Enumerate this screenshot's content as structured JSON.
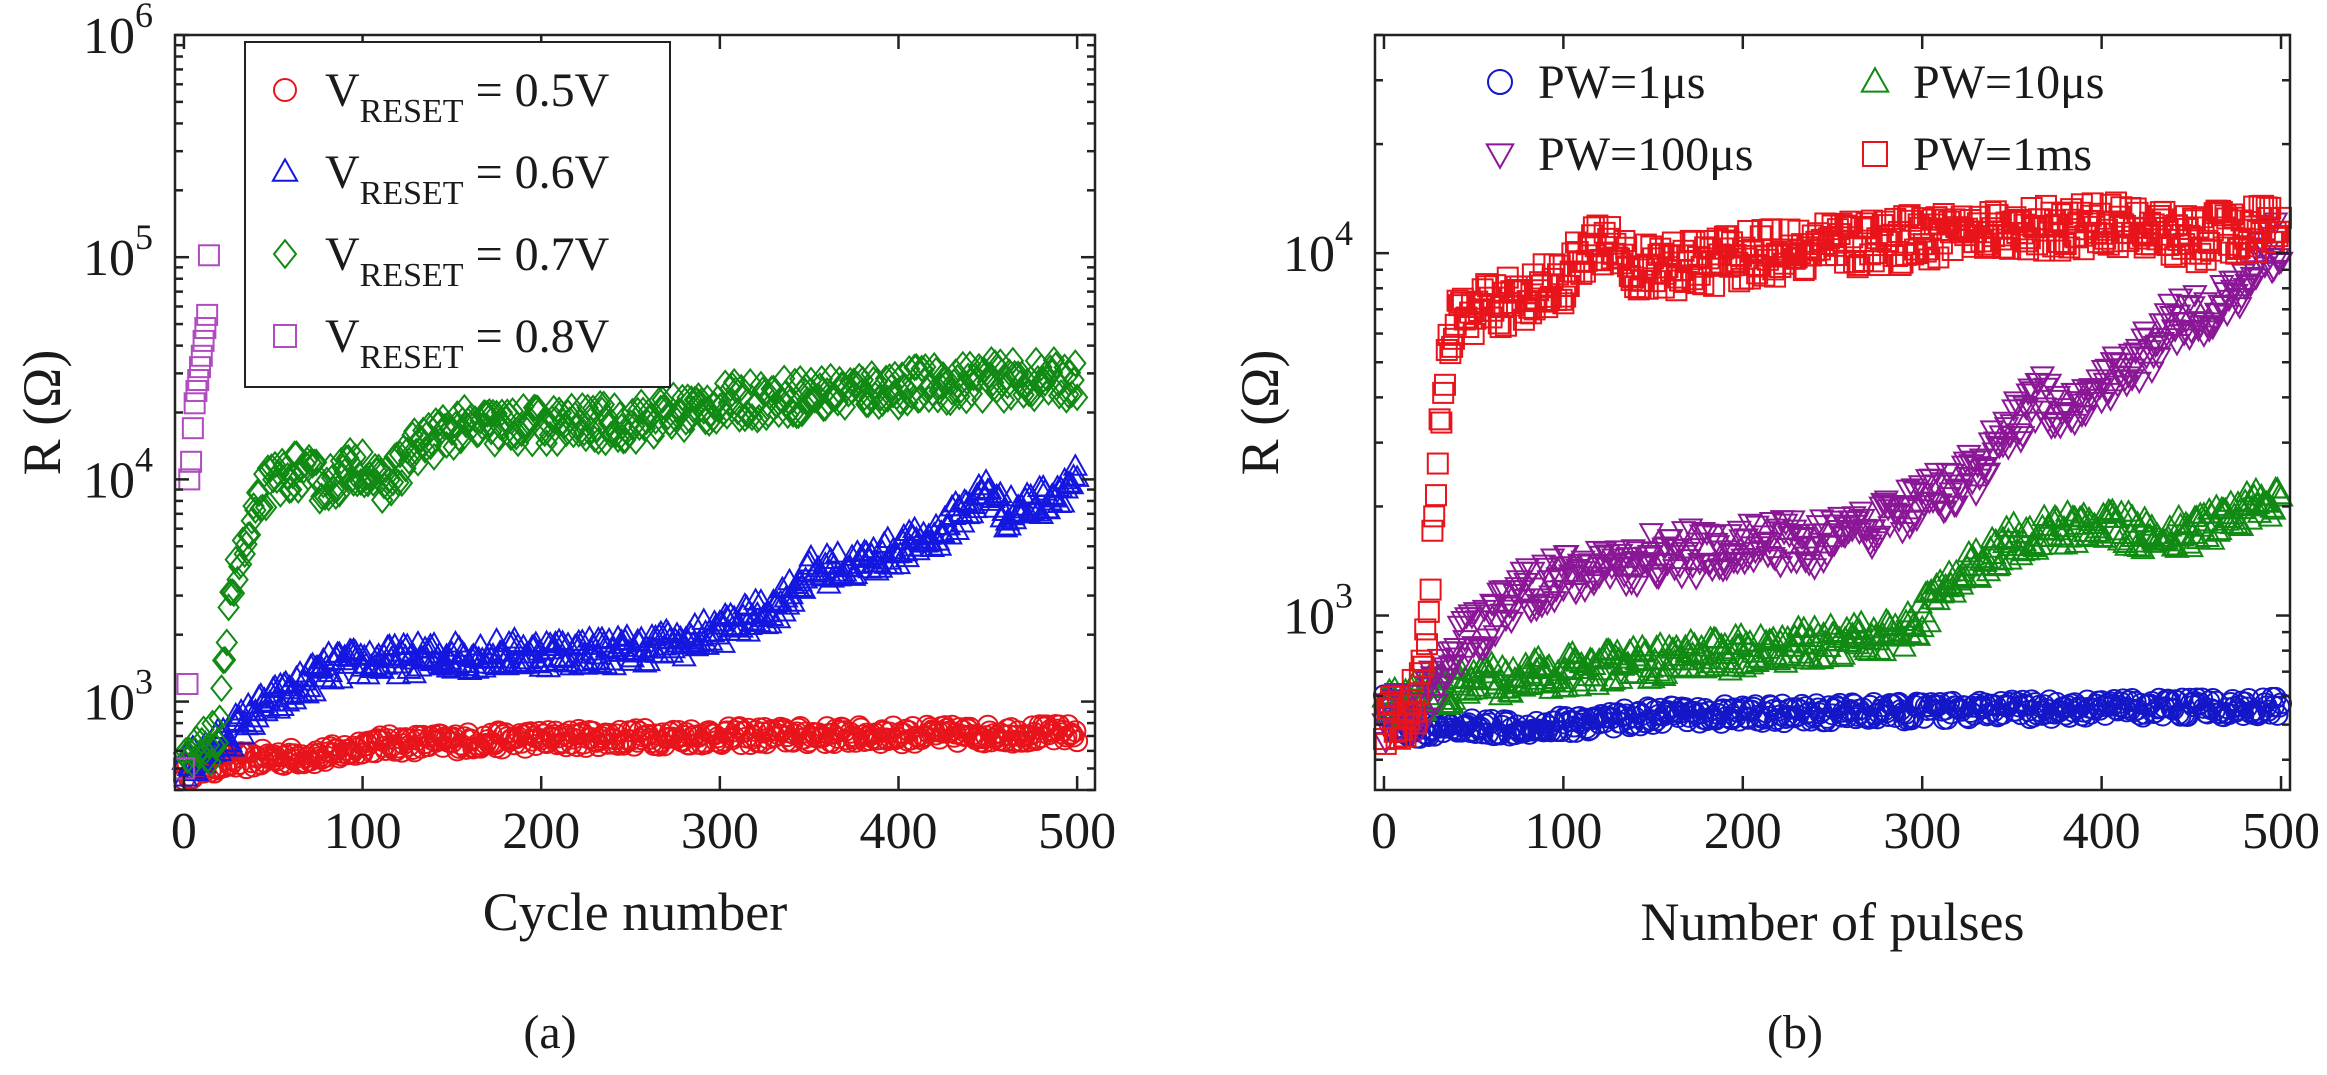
{
  "figure": {
    "panel_a_label": "(a)",
    "panel_b_label": "(b)"
  },
  "chart_data": [
    {
      "id": "a",
      "type": "scatter",
      "xlabel": "Cycle number",
      "ylabel": "R (Ω)",
      "xlim": [
        -5,
        510
      ],
      "ylim": [
        400,
        1000000
      ],
      "yscale": "log",
      "xticks": [
        0,
        100,
        200,
        300,
        400,
        500
      ],
      "yticks": [
        {
          "value": 1000,
          "base": "10",
          "exp": "3"
        },
        {
          "value": 10000,
          "base": "10",
          "exp": "4"
        },
        {
          "value": 100000,
          "base": "10",
          "exp": "5"
        },
        {
          "value": 1000000,
          "base": "10",
          "exp": "6"
        }
      ],
      "legend_position": "top-right",
      "series": [
        {
          "name": "V_RESET = 0.5V",
          "legend_main": "V",
          "legend_sub": "RESET",
          "legend_rest": " = 0.5V",
          "color": "#e8141b",
          "marker": "circle",
          "x_range": [
            0,
            500
          ],
          "points": [
            [
              0,
              480
            ],
            [
              20,
              530
            ],
            [
              50,
              560
            ],
            [
              80,
              575
            ],
            [
              95,
              610
            ],
            [
              100,
              640
            ],
            [
              150,
              660
            ],
            [
              200,
              680
            ],
            [
              250,
              690
            ],
            [
              300,
              700
            ],
            [
              350,
              705
            ],
            [
              400,
              710
            ],
            [
              450,
              715
            ],
            [
              500,
              720
            ]
          ],
          "jitter": 0.04
        },
        {
          "name": "V_RESET = 0.6V",
          "legend_main": "V",
          "legend_sub": "RESET",
          "legend_rest": " = 0.6V",
          "color": "#1417e0",
          "marker": "triangle-up",
          "x_range": [
            0,
            500
          ],
          "points": [
            [
              0,
              500
            ],
            [
              20,
              650
            ],
            [
              40,
              900
            ],
            [
              60,
              1100
            ],
            [
              80,
              1400
            ],
            [
              100,
              1500
            ],
            [
              150,
              1600
            ],
            [
              200,
              1650
            ],
            [
              250,
              1700
            ],
            [
              280,
              1850
            ],
            [
              300,
              2100
            ],
            [
              330,
              2600
            ],
            [
              350,
              3800
            ],
            [
              380,
              4200
            ],
            [
              420,
              5500
            ],
            [
              450,
              9000
            ],
            [
              460,
              7000
            ],
            [
              480,
              8000
            ],
            [
              500,
              10000
            ]
          ],
          "jitter": 0.07
        },
        {
          "name": "V_RESET = 0.7V",
          "legend_main": "V",
          "legend_sub": "RESET",
          "legend_rest": " = 0.7V",
          "color": "#118a14",
          "marker": "diamond",
          "x_range": [
            0,
            500
          ],
          "points": [
            [
              0,
              500
            ],
            [
              10,
              600
            ],
            [
              20,
              700
            ],
            [
              25,
              3000
            ],
            [
              35,
              5000
            ],
            [
              45,
              9000
            ],
            [
              60,
              11000
            ],
            [
              80,
              9500
            ],
            [
              100,
              12000
            ],
            [
              110,
              9000
            ],
            [
              130,
              14000
            ],
            [
              150,
              17000
            ],
            [
              200,
              17500
            ],
            [
              250,
              18000
            ],
            [
              300,
              22000
            ],
            [
              350,
              24000
            ],
            [
              400,
              26000
            ],
            [
              450,
              28000
            ],
            [
              500,
              28000
            ]
          ],
          "jitter": 0.09
        },
        {
          "name": "V_RESET = 0.8V",
          "legend_main": "V",
          "legend_sub": "RESET",
          "legend_rest": " = 0.8V",
          "color": "#b04bc0",
          "marker": "square",
          "x_range": [
            0,
            15
          ],
          "explicit": [
            [
              0,
              500
            ],
            [
              2,
              1200
            ],
            [
              3,
              10000
            ],
            [
              4,
              12000
            ],
            [
              5,
              17000
            ],
            [
              6,
              22000
            ],
            [
              7,
              25000
            ],
            [
              8,
              28000
            ],
            [
              9,
              32000
            ],
            [
              10,
              36000
            ],
            [
              11,
              42000
            ],
            [
              12,
              48000
            ],
            [
              13,
              55000
            ],
            [
              14,
              102000
            ]
          ]
        }
      ]
    },
    {
      "id": "b",
      "type": "scatter",
      "xlabel": "Number of pulses",
      "ylabel": "R (Ω)",
      "xlim": [
        -5,
        505
      ],
      "ylim": [
        330,
        40000
      ],
      "yscale": "log",
      "xticks": [
        0,
        100,
        200,
        300,
        400,
        500
      ],
      "yticks": [
        {
          "value": 1000,
          "base": "10",
          "exp": "3"
        },
        {
          "value": 10000,
          "base": "10",
          "exp": "4"
        }
      ],
      "legend_position": "top",
      "series": [
        {
          "name": "PW=1μs",
          "legend_main": "PW=1μs",
          "color": "#1417c8",
          "marker": "circle",
          "x_range": [
            0,
            500
          ],
          "points": [
            [
              0,
              600
            ],
            [
              5,
              500
            ],
            [
              20,
              480
            ],
            [
              50,
              490
            ],
            [
              100,
              500
            ],
            [
              130,
              520
            ],
            [
              150,
              530
            ],
            [
              200,
              535
            ],
            [
              300,
              545
            ],
            [
              400,
              555
            ],
            [
              500,
              560
            ]
          ],
          "jitter": 0.025
        },
        {
          "name": "PW=10μs",
          "legend_main": "PW=10μs",
          "color": "#118a14",
          "marker": "triangle-up",
          "x_range": [
            0,
            500
          ],
          "points": [
            [
              0,
              550
            ],
            [
              20,
              600
            ],
            [
              50,
              650
            ],
            [
              100,
              700
            ],
            [
              150,
              740
            ],
            [
              200,
              790
            ],
            [
              250,
              850
            ],
            [
              290,
              900
            ],
            [
              300,
              1000
            ],
            [
              320,
              1300
            ],
            [
              350,
              1600
            ],
            [
              380,
              1750
            ],
            [
              400,
              1800
            ],
            [
              430,
              1650
            ],
            [
              450,
              1700
            ],
            [
              480,
              1950
            ],
            [
              500,
              2100
            ]
          ],
          "jitter": 0.05
        },
        {
          "name": "PW=100μs",
          "legend_main": "PW=100μs",
          "color": "#8a1796",
          "marker": "triangle-down",
          "x_range": [
            0,
            500
          ],
          "points": [
            [
              0,
              520
            ],
            [
              20,
              560
            ],
            [
              30,
              650
            ],
            [
              45,
              850
            ],
            [
              60,
              950
            ],
            [
              80,
              1200
            ],
            [
              100,
              1300
            ],
            [
              150,
              1450
            ],
            [
              200,
              1550
            ],
            [
              250,
              1600
            ],
            [
              270,
              1700
            ],
            [
              300,
              2000
            ],
            [
              330,
              2500
            ],
            [
              350,
              3200
            ],
            [
              360,
              4000
            ],
            [
              380,
              3800
            ],
            [
              400,
              4500
            ],
            [
              420,
              5000
            ],
            [
              440,
              6500
            ],
            [
              460,
              7000
            ],
            [
              480,
              8000
            ],
            [
              490,
              10000
            ],
            [
              500,
              11000
            ]
          ],
          "jitter": 0.07
        },
        {
          "name": "PW=1ms",
          "legend_main": "PW=1ms",
          "color": "#e8141b",
          "marker": "square",
          "x_range": [
            0,
            500
          ],
          "points": [
            [
              0,
              500
            ],
            [
              10,
              520
            ],
            [
              20,
              600
            ],
            [
              25,
              1000
            ],
            [
              28,
              2000
            ],
            [
              32,
              4000
            ],
            [
              36,
              6000
            ],
            [
              50,
              7000
            ],
            [
              80,
              7500
            ],
            [
              100,
              8500
            ],
            [
              115,
              10000
            ],
            [
              125,
              11000
            ],
            [
              135,
              9500
            ],
            [
              150,
              9000
            ],
            [
              200,
              9800
            ],
            [
              250,
              10500
            ],
            [
              300,
              11000
            ],
            [
              350,
              11500
            ],
            [
              400,
              12000
            ],
            [
              450,
              11000
            ],
            [
              500,
              12000
            ]
          ],
          "jitter": 0.07
        }
      ]
    }
  ]
}
